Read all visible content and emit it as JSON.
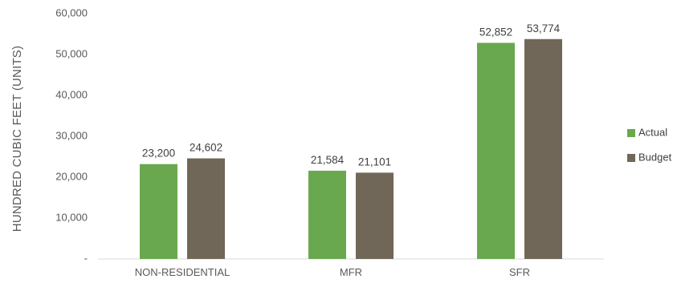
{
  "chart_data": {
    "type": "bar",
    "title": "",
    "xlabel": "",
    "ylabel": "HUNDRED CUBIC FEET (UNITS)",
    "categories": [
      "NON-RESIDENTIAL",
      "MFR",
      "SFR"
    ],
    "series": [
      {
        "name": "Actual",
        "color": "#6aa84f",
        "values": [
          23200,
          21584,
          52852
        ],
        "labels": [
          "23,200",
          "21,584",
          "52,852"
        ]
      },
      {
        "name": "Budget",
        "color": "#706758",
        "values": [
          24602,
          21101,
          53774
        ],
        "labels": [
          "24,602",
          "21,101",
          "53,774"
        ]
      }
    ],
    "ylim": [
      0,
      60000
    ],
    "yticks": [
      {
        "value": 0,
        "label": "-"
      },
      {
        "value": 10000,
        "label": "10,000"
      },
      {
        "value": 20000,
        "label": "20,000"
      },
      {
        "value": 30000,
        "label": "30,000"
      },
      {
        "value": 40000,
        "label": "40,000"
      },
      {
        "value": 50000,
        "label": "50,000"
      },
      {
        "value": 60000,
        "label": "60,000"
      }
    ],
    "grid": false,
    "legend_position": "right"
  }
}
